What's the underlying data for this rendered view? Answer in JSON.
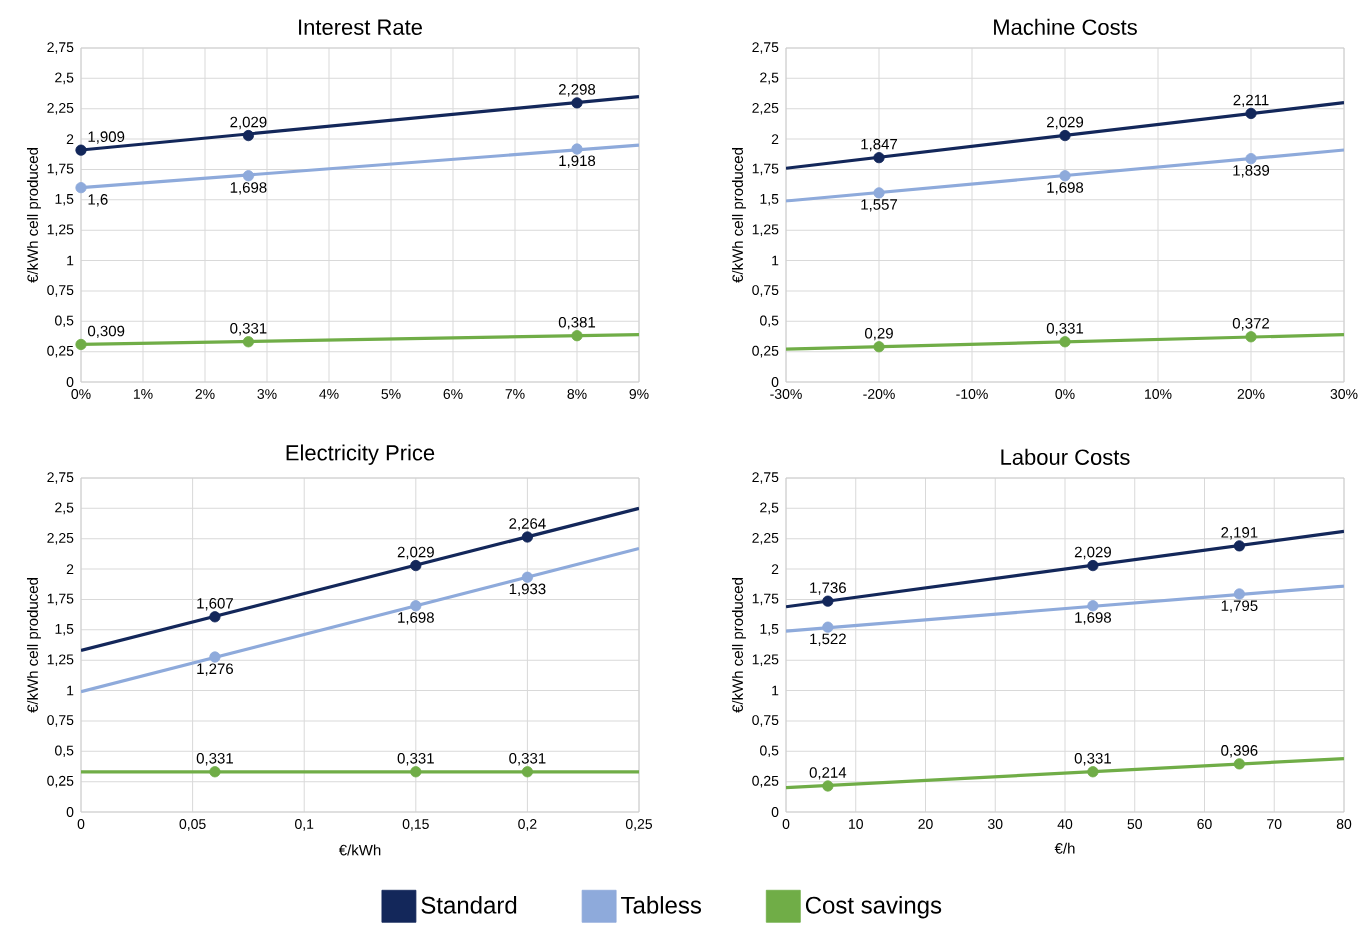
{
  "chart_data": [
    {
      "type": "scatter",
      "title": "Interest Rate",
      "ylabel": "€/kWh cell produced",
      "grid": true,
      "marker": "circle",
      "xlim": [
        0,
        9
      ],
      "xticks": [
        {
          "value": 0,
          "label": "0%"
        },
        {
          "value": 1,
          "label": "1%"
        },
        {
          "value": 2,
          "label": "2%"
        },
        {
          "value": 3,
          "label": "3%"
        },
        {
          "value": 4,
          "label": "4%"
        },
        {
          "value": 5,
          "label": "5%"
        },
        {
          "value": 6,
          "label": "6%"
        },
        {
          "value": 7,
          "label": "7%"
        },
        {
          "value": 8,
          "label": "8%"
        },
        {
          "value": 9,
          "label": "9%"
        }
      ],
      "ylim": [
        0,
        2.75
      ],
      "yticks": [
        {
          "value": 0,
          "label": "0"
        },
        {
          "value": 0.25,
          "label": "0,25"
        },
        {
          "value": 0.5,
          "label": "0,5"
        },
        {
          "value": 0.75,
          "label": "0,75"
        },
        {
          "value": 1,
          "label": "1"
        },
        {
          "value": 1.25,
          "label": "1,25"
        },
        {
          "value": 1.5,
          "label": "1,5"
        },
        {
          "value": 1.75,
          "label": "1,75"
        },
        {
          "value": 2,
          "label": "2"
        },
        {
          "value": 2.25,
          "label": "2,25"
        },
        {
          "value": 2.5,
          "label": "2,5"
        },
        {
          "value": 2.75,
          "label": "2,75"
        }
      ],
      "series": [
        {
          "color": "#13275a",
          "x": [
            0,
            2.7,
            8
          ],
          "values": [
            1.909,
            2.029,
            2.298
          ],
          "value_labels": [
            "1,909",
            "2,029",
            "2,298"
          ]
        },
        {
          "color": "#8eaadb",
          "x": [
            0,
            2.7,
            8
          ],
          "values": [
            1.6,
            1.698,
            1.918
          ],
          "value_labels": [
            "1,6",
            "1,698",
            "1,918"
          ]
        },
        {
          "color": "#70ad47",
          "x": [
            0,
            2.7,
            8
          ],
          "values": [
            0.309,
            0.331,
            0.381
          ],
          "value_labels": [
            "0,309",
            "0,331",
            "0,381"
          ]
        },
        {
          "type": "line",
          "marker": "none",
          "color": "#13275a",
          "x": [
            0,
            9
          ],
          "values": [
            1.91,
            2.35
          ]
        },
        {
          "type": "line",
          "marker": "none",
          "color": "#8eaadb",
          "x": [
            0,
            9
          ],
          "values": [
            1.6,
            1.95
          ]
        },
        {
          "type": "line",
          "marker": "none",
          "color": "#70ad47",
          "x": [
            0,
            9
          ],
          "values": [
            0.31,
            0.39
          ]
        }
      ]
    },
    {
      "type": "scatter",
      "title": "Machine Costs",
      "ylabel": "€/kWh cell produced",
      "grid": true,
      "marker": "circle",
      "xlim": [
        -30,
        30
      ],
      "xticks": [
        {
          "value": -30,
          "label": "-30%"
        },
        {
          "value": -20,
          "label": "-20%"
        },
        {
          "value": -10,
          "label": "-10%"
        },
        {
          "value": 0,
          "label": "0%"
        },
        {
          "value": 10,
          "label": "10%"
        },
        {
          "value": 20,
          "label": "20%"
        },
        {
          "value": 30,
          "label": "30%"
        }
      ],
      "ylim": [
        0,
        2.75
      ],
      "yticks": [
        {
          "value": 0,
          "label": "0"
        },
        {
          "value": 0.25,
          "label": "0,25"
        },
        {
          "value": 0.5,
          "label": "0,5"
        },
        {
          "value": 0.75,
          "label": "0,75"
        },
        {
          "value": 1,
          "label": "1"
        },
        {
          "value": 1.25,
          "label": "1,25"
        },
        {
          "value": 1.5,
          "label": "1,5"
        },
        {
          "value": 1.75,
          "label": "1,75"
        },
        {
          "value": 2,
          "label": "2"
        },
        {
          "value": 2.25,
          "label": "2,25"
        },
        {
          "value": 2.5,
          "label": "2,5"
        },
        {
          "value": 2.75,
          "label": "2,75"
        }
      ],
      "series": [
        {
          "color": "#13275a",
          "x": [
            -20,
            0,
            20
          ],
          "values": [
            1.847,
            2.029,
            2.211
          ],
          "value_labels": [
            "1,847",
            "2,029",
            "2,211"
          ]
        },
        {
          "color": "#8eaadb",
          "x": [
            -20,
            0,
            20
          ],
          "values": [
            1.557,
            1.698,
            1.839
          ],
          "value_labels": [
            "1,557",
            "1,698",
            "1,839"
          ]
        },
        {
          "color": "#70ad47",
          "x": [
            -20,
            0,
            20
          ],
          "values": [
            0.29,
            0.331,
            0.372
          ],
          "value_labels": [
            "0,29",
            "0,331",
            "0,372"
          ]
        },
        {
          "type": "line",
          "marker": "none",
          "color": "#13275a",
          "x": [
            -30,
            30
          ],
          "values": [
            1.76,
            2.3
          ]
        },
        {
          "type": "line",
          "marker": "none",
          "color": "#8eaadb",
          "x": [
            -30,
            30
          ],
          "values": [
            1.49,
            1.91
          ]
        },
        {
          "type": "line",
          "marker": "none",
          "color": "#70ad47",
          "x": [
            -30,
            30
          ],
          "values": [
            0.27,
            0.39
          ]
        }
      ]
    },
    {
      "type": "scatter",
      "title": "Electricity Price",
      "xlabel": "€/kWh",
      "ylabel": "€/kWh cell produced",
      "grid": true,
      "marker": "circle",
      "xlim": [
        0,
        0.25
      ],
      "xticks": [
        {
          "value": 0,
          "label": "0"
        },
        {
          "value": 0.05,
          "label": "0,05"
        },
        {
          "value": 0.1,
          "label": "0,1"
        },
        {
          "value": 0.15,
          "label": "0,15"
        },
        {
          "value": 0.2,
          "label": "0,2"
        },
        {
          "value": 0.25,
          "label": "0,25"
        }
      ],
      "ylim": [
        0,
        2.75
      ],
      "yticks": [
        {
          "value": 0,
          "label": "0"
        },
        {
          "value": 0.25,
          "label": "0,25"
        },
        {
          "value": 0.5,
          "label": "0,5"
        },
        {
          "value": 0.75,
          "label": "0,75"
        },
        {
          "value": 1,
          "label": "1"
        },
        {
          "value": 1.25,
          "label": "1,25"
        },
        {
          "value": 1.5,
          "label": "1,5"
        },
        {
          "value": 1.75,
          "label": "1,75"
        },
        {
          "value": 2,
          "label": "2"
        },
        {
          "value": 2.25,
          "label": "2,25"
        },
        {
          "value": 2.5,
          "label": "2,5"
        },
        {
          "value": 2.75,
          "label": "2,75"
        }
      ],
      "series": [
        {
          "color": "#13275a",
          "x": [
            0.06,
            0.15,
            0.2
          ],
          "values": [
            1.607,
            2.029,
            2.264
          ],
          "value_labels": [
            "1,607",
            "2,029",
            "2,264"
          ]
        },
        {
          "color": "#8eaadb",
          "x": [
            0.06,
            0.15,
            0.2
          ],
          "values": [
            1.276,
            1.698,
            1.933
          ],
          "value_labels": [
            "1,276",
            "1,698",
            "1,933"
          ]
        },
        {
          "color": "#70ad47",
          "x": [
            0.06,
            0.15,
            0.2
          ],
          "values": [
            0.331,
            0.331,
            0.331
          ],
          "value_labels": [
            "0,331",
            "0,331",
            "0,331"
          ]
        },
        {
          "type": "line",
          "marker": "none",
          "color": "#13275a",
          "x": [
            0,
            0.25
          ],
          "values": [
            1.33,
            2.5
          ]
        },
        {
          "type": "line",
          "marker": "none",
          "color": "#8eaadb",
          "x": [
            0,
            0.25
          ],
          "values": [
            0.99,
            2.17
          ]
        },
        {
          "type": "line",
          "marker": "none",
          "color": "#70ad47",
          "x": [
            0,
            0.25
          ],
          "values": [
            0.33,
            0.33
          ]
        }
      ]
    },
    {
      "type": "scatter",
      "title": "Labour Costs",
      "xlabel": "€/h",
      "ylabel": "€/kWh cell produced",
      "grid": true,
      "marker": "circle",
      "legend": "bottom",
      "xlim": [
        0,
        80
      ],
      "xticks": [
        0,
        10,
        20,
        30,
        40,
        50,
        60,
        70,
        80
      ],
      "ylim": [
        0,
        2.75
      ],
      "yticks": [
        {
          "value": 0,
          "label": "0"
        },
        {
          "value": 0.25,
          "label": "0,25"
        },
        {
          "value": 0.5,
          "label": "0,5"
        },
        {
          "value": 0.75,
          "label": "0,75"
        },
        {
          "value": 1,
          "label": "1"
        },
        {
          "value": 1.25,
          "label": "1,25"
        },
        {
          "value": 1.5,
          "label": "1,5"
        },
        {
          "value": 1.75,
          "label": "1,75"
        },
        {
          "value": 2,
          "label": "2"
        },
        {
          "value": 2.25,
          "label": "2,25"
        },
        {
          "value": 2.5,
          "label": "2,5"
        },
        {
          "value": 2.75,
          "label": "2,75"
        }
      ],
      "series": [
        {
          "name": "Standard",
          "color": "#13275a",
          "x": [
            6,
            44,
            65
          ],
          "values": [
            1.736,
            2.029,
            2.191
          ],
          "value_labels": [
            "1,736",
            "2,029",
            "2,191"
          ]
        },
        {
          "name": "Tabless",
          "color": "#8eaadb",
          "x": [
            6,
            44,
            65
          ],
          "values": [
            1.522,
            1.698,
            1.795
          ],
          "value_labels": [
            "1,522",
            "1,698",
            "1,795"
          ]
        },
        {
          "name": "Cost savings",
          "color": "#70ad47",
          "x": [
            6,
            44,
            65
          ],
          "values": [
            0.214,
            0.331,
            0.396
          ],
          "value_labels": [
            "0,214",
            "0,331",
            "0,396"
          ]
        },
        {
          "type": "line",
          "marker": "none",
          "color": "#13275a",
          "x": [
            0,
            80
          ],
          "values": [
            1.69,
            2.31
          ]
        },
        {
          "type": "line",
          "marker": "none",
          "color": "#8eaadb",
          "x": [
            0,
            80
          ],
          "values": [
            1.49,
            1.86
          ]
        },
        {
          "type": "line",
          "marker": "none",
          "color": "#70ad47",
          "x": [
            0,
            80
          ],
          "values": [
            0.2,
            0.44
          ]
        }
      ]
    }
  ]
}
